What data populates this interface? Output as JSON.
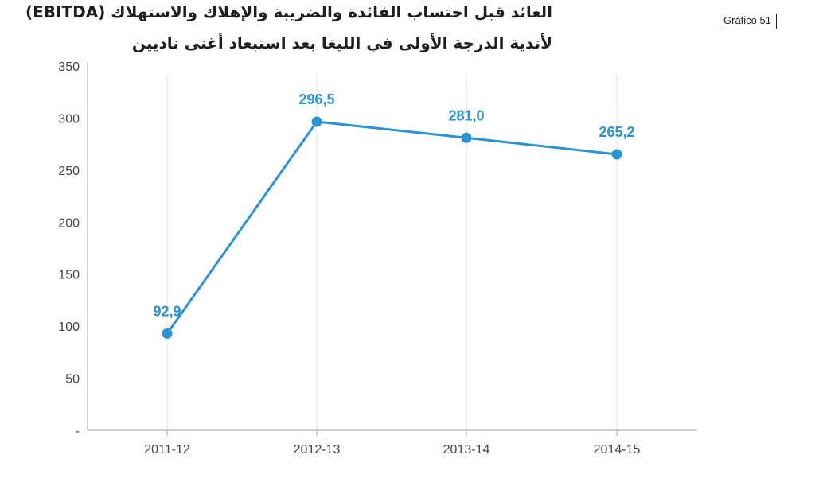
{
  "header": {
    "title_line1": "العائد قبل احتساب الفائدة والضريبة والإهلاك والاستهلاك (EBITDA)",
    "title_line2": "لأندية الدرجة الأولى في الليغا بعد استبعاد أغنى ناديين",
    "badge": "Gráfico 51"
  },
  "colors": {
    "series": "#2a93d6",
    "axis": "#bfbfbf",
    "text": "#1f1f1f"
  },
  "chart_data": {
    "type": "line",
    "title": "العائد قبل احتساب الفائدة والضريبة والإهلاك والاستهلاك (EBITDA) لأندية الدرجة الأولى في الليغا بعد استبعاد أغنى ناديين",
    "xlabel": "",
    "ylabel": "",
    "categories": [
      "2011-12",
      "2012-13",
      "2013-14",
      "2014-15"
    ],
    "series": [
      {
        "values": [
          92.9,
          296.5,
          281.0,
          265.2
        ],
        "labels": [
          "92,9",
          "296,5",
          "281,0",
          "265,2"
        ]
      }
    ],
    "ylim": [
      0,
      350
    ],
    "y_ticks": [
      {
        "value": 350,
        "label": "350"
      },
      {
        "value": 300,
        "label": "300"
      },
      {
        "value": 250,
        "label": "250"
      },
      {
        "value": 200,
        "label": "200"
      },
      {
        "value": 150,
        "label": "150"
      },
      {
        "value": 100,
        "label": "100"
      },
      {
        "value": 50,
        "label": "50"
      },
      {
        "value": 0,
        "label": "-"
      }
    ],
    "grid": "vertical",
    "legend": "none"
  }
}
